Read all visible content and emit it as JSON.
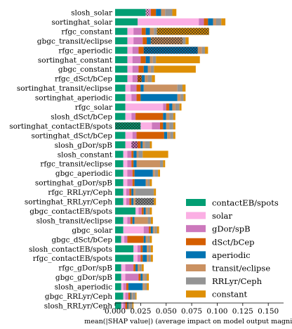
{
  "chart_data": {
    "type": "bar",
    "orientation": "horizontal",
    "stacked": true,
    "xlabel": "mean(|SHAP value|) (average impact on model output magnitude)",
    "ylabel": "",
    "xlim": [
      0,
      0.165
    ],
    "xticks": [
      "0.000",
      "0.025",
      "0.050",
      "0.075",
      "0.100",
      "0.125",
      "0.150"
    ],
    "legend_position": "lower-right",
    "categories": [
      "slosh_solar",
      "sortinghat_solar",
      "rfgc_constant",
      "gbgc_transit/eclipse",
      "rfgc_aperiodic",
      "sortinghat_constant",
      "gbgc_constant",
      "rfgc_dSct/bCep",
      "sortinghat_transit/eclipse",
      "sortinghat_aperiodic",
      "rfgc_solar",
      "slosh_dSct/bCep",
      "sortinghat_contactEB/spots",
      "sortinghat_dSct/bCep",
      "slosh_gDor/spB",
      "slosh_constant",
      "rfgc_transit/eclipse",
      "gbgc_aperiodic",
      "sortinghat_gDor/spB",
      "rfgc_RRLyr/Ceph",
      "sortinghat_RRLyr/Ceph",
      "gbgc_contactEB/spots",
      "slosh_transit/eclipse",
      "gbgc_solar",
      "gbgc_dSct/bCep",
      "slosh_contactEB/spots",
      "rfgc_contactEB/spots",
      "rfgc_gDor/spB",
      "gbgc_gDor/spB",
      "slosh_aperiodic",
      "gbgc_RRLyr/Ceph",
      "slosh_RRLyr/Ceph"
    ],
    "series": [
      {
        "name": "contactEB/spots",
        "color": "#029e73",
        "values": [
          0.03,
          0.022,
          0.012,
          0.012,
          0.012,
          0.012,
          0.012,
          0.012,
          0.01,
          0.01,
          0.01,
          0.01,
          0.025,
          0.01,
          0.01,
          0.008,
          0.008,
          0.008,
          0.008,
          0.008,
          0.008,
          0.02,
          0.008,
          0.008,
          0.006,
          0.018,
          0.018,
          0.006,
          0.006,
          0.006,
          0.008,
          0.006
        ]
      },
      {
        "name": "solar",
        "color": "#fbafe4",
        "values": [
          0.003,
          0.06,
          0.006,
          0.006,
          0.005,
          0.005,
          0.005,
          0.005,
          0.005,
          0.006,
          0.037,
          0.006,
          0.011,
          0.007,
          0.006,
          0.004,
          0.004,
          0.004,
          0.004,
          0.003,
          0.003,
          0.003,
          0.004,
          0.02,
          0.003,
          0.004,
          0.004,
          0.004,
          0.004,
          0.002,
          0.002,
          0.002
        ]
      },
      {
        "name": "gDor/spB",
        "color": "#cc78bc",
        "values": [
          0.002,
          0.005,
          0.008,
          0.009,
          0.006,
          0.008,
          0.006,
          0.005,
          0.006,
          0.005,
          0.003,
          0.004,
          0.008,
          0.004,
          0.006,
          0.004,
          0.004,
          0.005,
          0.005,
          0.003,
          0.003,
          0.003,
          0.003,
          0.005,
          0.003,
          0.003,
          0.003,
          0.008,
          0.013,
          0.003,
          0.003,
          0.002
        ]
      },
      {
        "name": "dSct/bCep",
        "color": "#d55e00",
        "values": [
          0.005,
          0.004,
          0.004,
          0.004,
          0.005,
          0.005,
          0.005,
          0.004,
          0.004,
          0.004,
          0.003,
          0.027,
          0.003,
          0.027,
          0.003,
          0.002,
          0.002,
          0.002,
          0.002,
          0.002,
          0.002,
          0.002,
          0.002,
          0.002,
          0.016,
          0.002,
          0.002,
          0.002,
          0.002,
          0.002,
          0.002,
          0.002
        ]
      },
      {
        "name": "aperiodic",
        "color": "#0173b2",
        "values": [
          0.005,
          0.005,
          0.004,
          0.004,
          0.053,
          0.004,
          0.004,
          0.003,
          0.003,
          0.036,
          0.003,
          0.003,
          0.003,
          0.003,
          0.002,
          0.003,
          0.003,
          0.018,
          0.011,
          0.002,
          0.002,
          0.002,
          0.002,
          0.002,
          0.002,
          0.004,
          0.004,
          0.002,
          0.002,
          0.014,
          0.001,
          0.001
        ]
      },
      {
        "name": "transit/eclipse",
        "color": "#ca9161",
        "values": [
          0.004,
          0.003,
          0.004,
          0.031,
          0.004,
          0.003,
          0.003,
          0.003,
          0.033,
          0.003,
          0.003,
          0.003,
          0.003,
          0.003,
          0.002,
          0.002,
          0.023,
          0.002,
          0.002,
          0.002,
          0.002,
          0.002,
          0.013,
          0.002,
          0.002,
          0.002,
          0.002,
          0.002,
          0.002,
          0.002,
          0.001,
          0.001
        ]
      },
      {
        "name": "RRLyr/Ceph",
        "color": "#949494",
        "values": [
          0.007,
          0.005,
          0.003,
          0.003,
          0.003,
          0.003,
          0.003,
          0.004,
          0.005,
          0.003,
          0.004,
          0.004,
          0.004,
          0.003,
          0.005,
          0.004,
          0.003,
          0.003,
          0.002,
          0.018,
          0.018,
          0.002,
          0.003,
          0.002,
          0.002,
          0.002,
          0.002,
          0.002,
          0.002,
          0.002,
          0.003,
          0.003
        ]
      },
      {
        "name": "constant",
        "color": "#de8f05",
        "values": [
          0.004,
          0.004,
          0.051,
          0.003,
          0.003,
          0.043,
          0.041,
          0.003,
          0.003,
          0.002,
          0.002,
          0.002,
          0.002,
          0.002,
          0.002,
          0.025,
          0.002,
          0.002,
          0.002,
          0.002,
          0.002,
          0.002,
          0.002,
          0.002,
          0.002,
          0.002,
          0.002,
          0.002,
          0.002,
          0.002,
          0.001,
          0.001
        ]
      }
    ],
    "highlighted": [
      {
        "category": "slosh_solar",
        "series": "solar"
      },
      {
        "category": "rfgc_constant",
        "series": "constant"
      },
      {
        "category": "gbgc_transit/eclipse",
        "series": "transit/eclipse"
      },
      {
        "category": "rfgc_aperiodic",
        "series": "aperiodic"
      },
      {
        "category": "rfgc_dSct/bCep",
        "series": "dSct/bCep"
      },
      {
        "category": "sortinghat_contactEB/spots",
        "series": "contactEB/spots"
      },
      {
        "category": "slosh_gDor/spB",
        "series": "gDor/spB"
      },
      {
        "category": "sortinghat_RRLyr/Ceph",
        "series": "RRLyr/Ceph"
      }
    ]
  }
}
